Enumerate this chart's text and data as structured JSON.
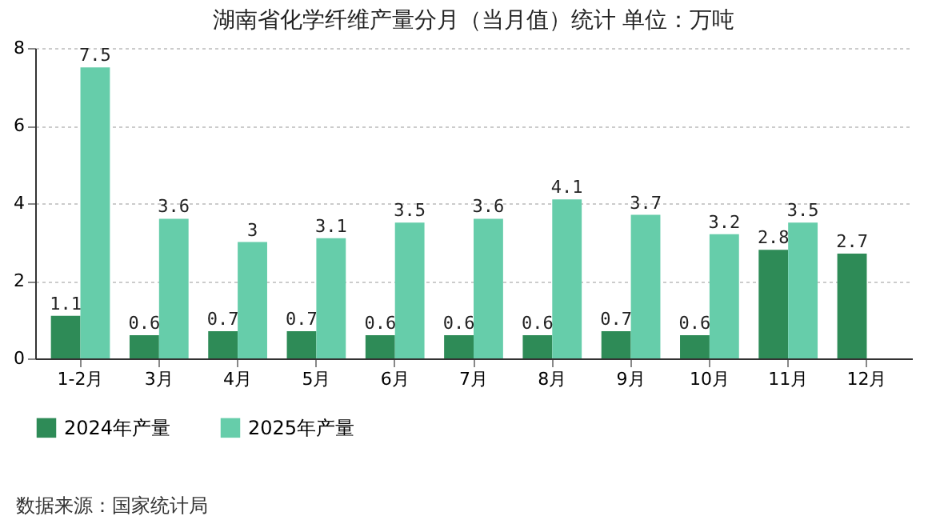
{
  "chart_data": {
    "type": "bar",
    "title": "湖南省化学纤维产量分月（当月值）统计 单位：万吨",
    "categories": [
      "1-2月",
      "3月",
      "4月",
      "5月",
      "6月",
      "7月",
      "8月",
      "9月",
      "10月",
      "11月",
      "12月"
    ],
    "series": [
      {
        "name": "2024年产量",
        "color": "#2e8b57",
        "values": [
          1.1,
          0.6,
          0.7,
          0.7,
          0.6,
          0.6,
          0.6,
          0.7,
          0.6,
          2.8,
          2.7
        ]
      },
      {
        "name": "2025年产量",
        "color": "#66cdaa",
        "values": [
          7.5,
          3.6,
          3,
          3.1,
          3.5,
          3.6,
          4.1,
          3.7,
          3.2,
          3.5,
          null
        ]
      }
    ],
    "ylim": [
      0,
      8
    ],
    "yticks": [
      0,
      2,
      4,
      6,
      8
    ],
    "grid": "y",
    "legend": "bottom",
    "data_labels": true,
    "annotations": [
      "数据来源：国家统计局"
    ]
  }
}
